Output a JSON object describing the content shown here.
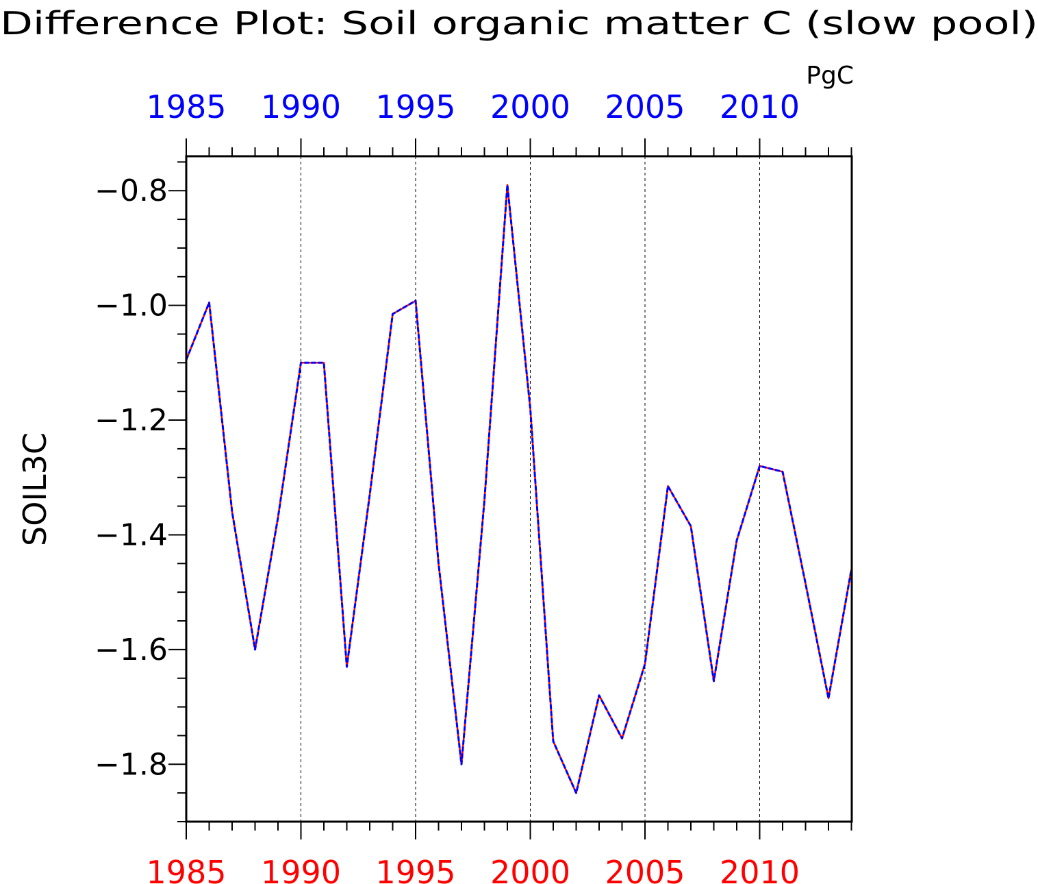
{
  "chart_data": {
    "type": "line",
    "title": "Difference Plot: Soil organic matter C (slow pool)",
    "units": "PgC",
    "ylabel": "SOIL3C",
    "xlabel": "",
    "xlim": [
      1985,
      2013
    ],
    "ylim": [
      -1.9,
      -0.74
    ],
    "x_ticks": [
      1985,
      1990,
      1995,
      2000,
      2005,
      2010
    ],
    "y_ticks": [
      -0.8,
      -1.0,
      -1.2,
      -1.4,
      -1.6,
      -1.8
    ],
    "y_tick_labels": [
      "−0.8",
      "−1.0",
      "−1.2",
      "−1.4",
      "−1.6",
      "−1.8"
    ],
    "top_axis_color": "#0000ff",
    "bottom_axis_color": "#ff0000",
    "grid": "vertical dashed at major x ticks",
    "series": [
      {
        "color": "#ff0000",
        "style": "solid",
        "x": [
          1985,
          1986,
          1987,
          1988,
          1989,
          1990,
          1991,
          1992,
          1993,
          1994,
          1995,
          1996,
          1997,
          1998,
          1999,
          2000,
          2001,
          2002,
          2003,
          2004,
          2005,
          2006,
          2007,
          2008,
          2009,
          2010,
          2011,
          2012,
          2013,
          2014
        ],
        "values": [
          -1.095,
          -0.995,
          -1.36,
          -1.6,
          -1.37,
          -1.1,
          -1.1,
          -1.63,
          -1.33,
          -1.015,
          -0.992,
          -1.45,
          -1.8,
          -1.34,
          -0.79,
          -1.18,
          -1.76,
          -1.85,
          -1.68,
          -1.755,
          -1.625,
          -1.315,
          -1.385,
          -1.655,
          -1.41,
          -1.28,
          -1.29,
          -1.485,
          -1.685,
          -1.46
        ]
      },
      {
        "color": "#0000ff",
        "style": "dashed",
        "x": [
          1985,
          1986,
          1987,
          1988,
          1989,
          1990,
          1991,
          1992,
          1993,
          1994,
          1995,
          1996,
          1997,
          1998,
          1999,
          2000,
          2001,
          2002,
          2003,
          2004,
          2005,
          2006,
          2007,
          2008,
          2009,
          2010,
          2011,
          2012,
          2013,
          2014
        ],
        "values": [
          -1.095,
          -0.995,
          -1.36,
          -1.6,
          -1.37,
          -1.1,
          -1.1,
          -1.63,
          -1.33,
          -1.015,
          -0.992,
          -1.45,
          -1.8,
          -1.34,
          -0.79,
          -1.18,
          -1.76,
          -1.85,
          -1.68,
          -1.755,
          -1.625,
          -1.315,
          -1.385,
          -1.655,
          -1.41,
          -1.28,
          -1.29,
          -1.485,
          -1.685,
          -1.46
        ]
      }
    ]
  }
}
